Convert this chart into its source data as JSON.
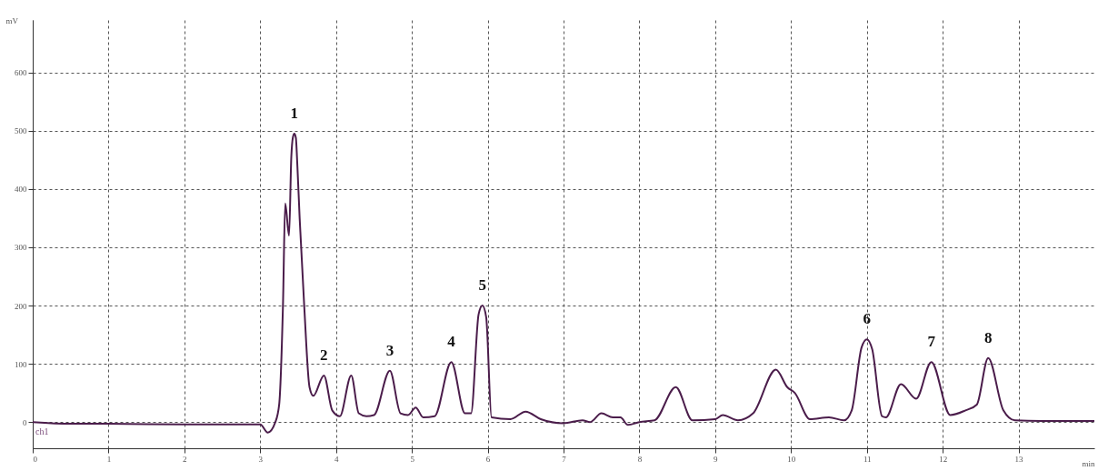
{
  "chart_data": {
    "type": "line",
    "xlabel": "min",
    "ylabel": "mV",
    "x": [
      0,
      0.5,
      1,
      2,
      3,
      3.1,
      3.2,
      3.25,
      3.3,
      3.33,
      3.38,
      3.41,
      3.43,
      3.45,
      3.47,
      3.49,
      3.52,
      3.58,
      3.65,
      3.7,
      3.84,
      3.95,
      4.05,
      4.2,
      4.3,
      4.4,
      4.5,
      4.71,
      4.85,
      4.95,
      5.05,
      5.15,
      5.3,
      5.52,
      5.7,
      5.78,
      5.88,
      5.93,
      5.98,
      6.05,
      6.3,
      6.5,
      6.7,
      7,
      7.25,
      7.35,
      7.5,
      7.65,
      7.75,
      7.85,
      8,
      8.2,
      8.48,
      8.7,
      9,
      9.1,
      9.3,
      9.5,
      9.8,
      9.95,
      10.05,
      10.25,
      10.5,
      10.7,
      10.8,
      10.93,
      11,
      11.07,
      11.2,
      11.25,
      11.45,
      11.65,
      11.85,
      12.1,
      12.3,
      12.45,
      12.6,
      12.8,
      12.95,
      13.3,
      14
    ],
    "series": [
      {
        "color": "#4b1d4b",
        "values": [
          0,
          -3,
          -3,
          -4,
          -4,
          -18,
          0,
          30,
          200,
          375,
          320,
          455,
          488,
          495,
          488,
          440,
          350,
          200,
          60,
          45,
          80,
          20,
          10,
          80,
          15,
          10,
          12,
          88,
          15,
          12,
          25,
          8,
          10,
          103,
          15,
          15,
          185,
          200,
          180,
          8,
          5,
          18,
          5,
          -2,
          3,
          0,
          15,
          8,
          8,
          -5,
          0,
          3,
          60,
          3,
          5,
          12,
          3,
          15,
          90,
          60,
          50,
          5,
          8,
          3,
          20,
          128,
          142,
          125,
          10,
          8,
          65,
          40,
          103,
          12,
          20,
          30,
          110,
          20,
          3,
          2,
          2
        ]
      }
    ],
    "xlim": [
      0,
      14
    ],
    "ylim": [
      -45,
      690
    ],
    "xticks": [
      0,
      1,
      2,
      3,
      4,
      5,
      6,
      7,
      8,
      9,
      10,
      11,
      12,
      13
    ],
    "yticks": [
      0,
      100,
      200,
      300,
      400,
      500,
      600
    ],
    "grid": true,
    "line_style": "solid",
    "annotations": [
      {
        "text": "1",
        "x": 3.45,
        "y": 495
      },
      {
        "text": "2",
        "x": 3.84,
        "y": 80
      },
      {
        "text": "3",
        "x": 4.71,
        "y": 88
      },
      {
        "text": "4",
        "x": 5.52,
        "y": 103
      },
      {
        "text": "5",
        "x": 5.93,
        "y": 200
      },
      {
        "text": "6",
        "x": 11,
        "y": 142
      },
      {
        "text": "7",
        "x": 11.85,
        "y": 103
      },
      {
        "text": "8",
        "x": 12.6,
        "y": 110
      },
      "ch1"
    ]
  }
}
